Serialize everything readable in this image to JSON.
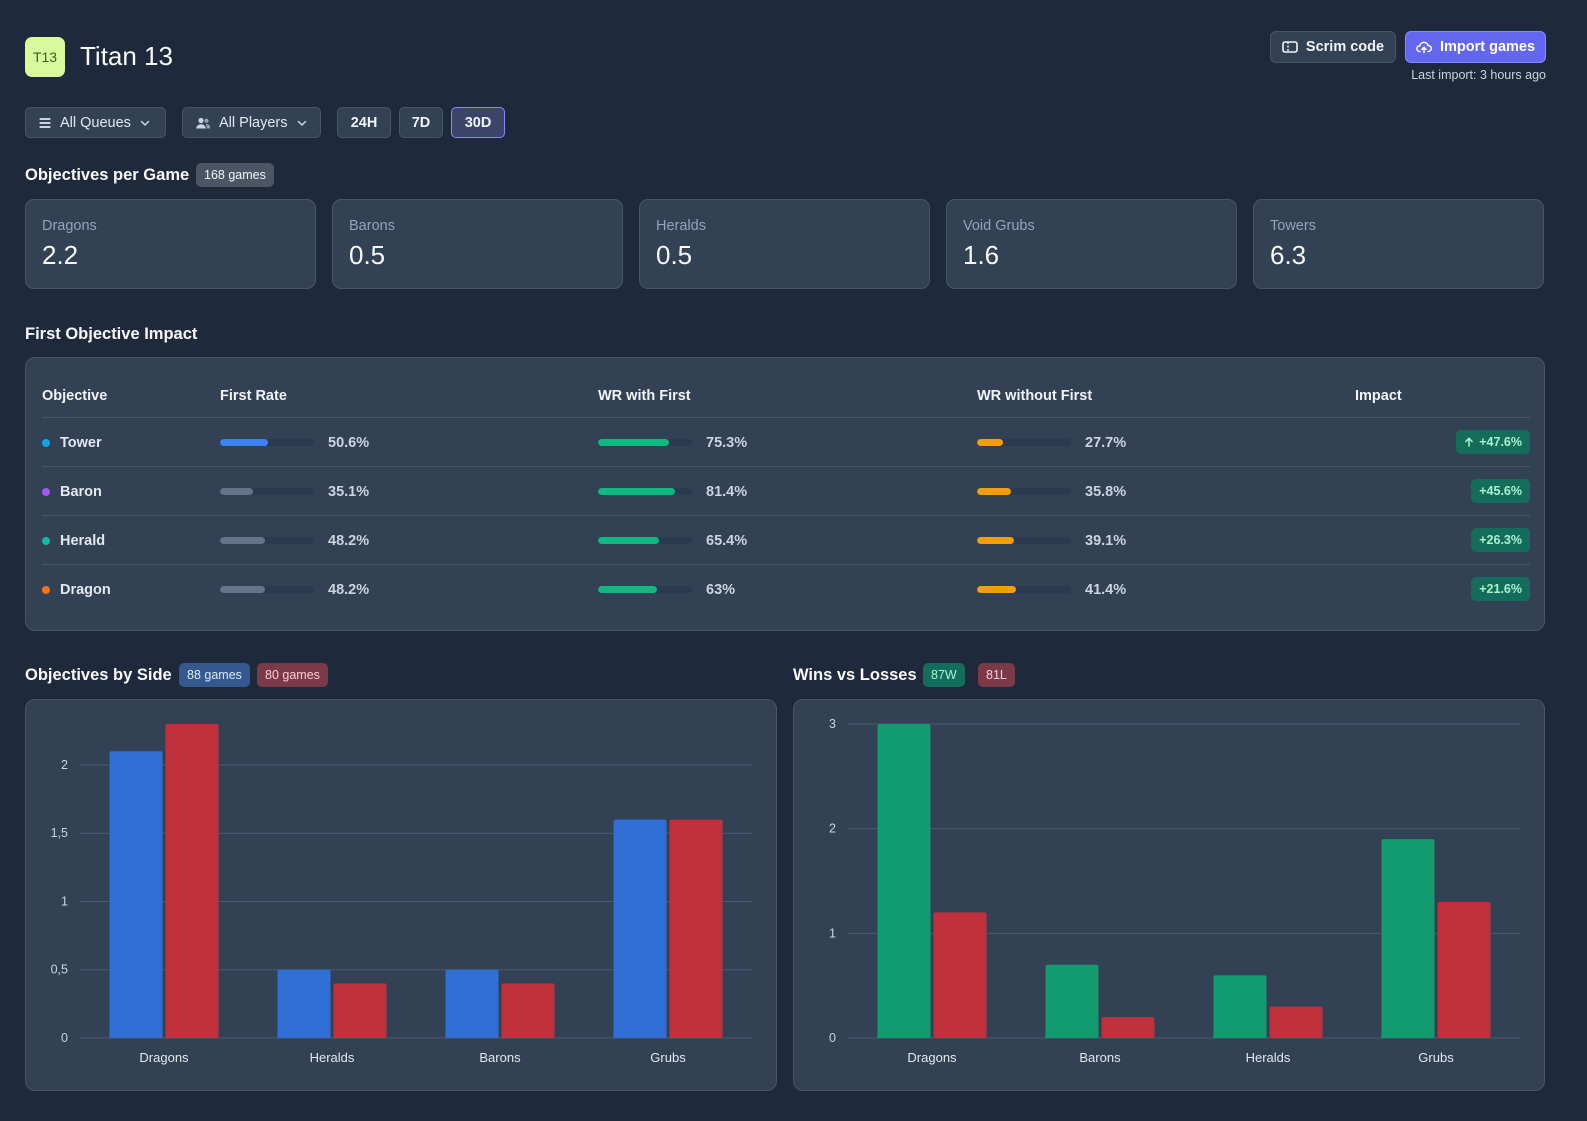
{
  "header": {
    "logo_text": "T13",
    "team_name": "Titan 13",
    "scrim_button": "Scrim code",
    "import_button": "Import games",
    "last_import": "Last import: 3 hours ago"
  },
  "filters": {
    "queues": "All Queues",
    "players": "All Players",
    "ranges": [
      "24H",
      "7D",
      "30D"
    ],
    "selected_range": "30D"
  },
  "objectives_per_game": {
    "title": "Objectives per Game",
    "games_badge": "168 games",
    "cards": [
      {
        "label": "Dragons",
        "value": "2.2"
      },
      {
        "label": "Barons",
        "value": "0.5"
      },
      {
        "label": "Heralds",
        "value": "0.5"
      },
      {
        "label": "Void Grubs",
        "value": "1.6"
      },
      {
        "label": "Towers",
        "value": "6.3"
      }
    ]
  },
  "first_objective_impact": {
    "title": "First Objective Impact",
    "columns": [
      "Objective",
      "First Rate",
      "WR with First",
      "WR without First",
      "Impact"
    ],
    "rows": [
      {
        "objective": "Tower",
        "dot_color": "#0ea5e9",
        "first_rate": "50.6%",
        "first_rate_value": 0.506,
        "first_rate_color": "#3b82f6",
        "wr_with": "75.3%",
        "wr_with_value": 0.753,
        "wr_without": "27.7%",
        "wr_without_value": 0.277,
        "impact": "+47.6%",
        "impact_arrow": true
      },
      {
        "objective": "Baron",
        "dot_color": "#a855f7",
        "first_rate": "35.1%",
        "first_rate_value": 0.351,
        "first_rate_color": "#64748b",
        "wr_with": "81.4%",
        "wr_with_value": 0.814,
        "wr_without": "35.8%",
        "wr_without_value": 0.358,
        "impact": "+45.6%",
        "impact_arrow": false
      },
      {
        "objective": "Herald",
        "dot_color": "#14b8a6",
        "first_rate": "48.2%",
        "first_rate_value": 0.482,
        "first_rate_color": "#64748b",
        "wr_with": "65.4%",
        "wr_with_value": 0.654,
        "wr_without": "39.1%",
        "wr_without_value": 0.391,
        "impact": "+26.3%",
        "impact_arrow": false
      },
      {
        "objective": "Dragon",
        "dot_color": "#f97316",
        "first_rate": "48.2%",
        "first_rate_value": 0.482,
        "first_rate_color": "#64748b",
        "wr_with": "63%",
        "wr_with_value": 0.63,
        "wr_without": "41.4%",
        "wr_without_value": 0.414,
        "impact": "+21.6%",
        "impact_arrow": false
      }
    ],
    "colors": {
      "wr_with": "#10b981",
      "wr_without": "#f59e0b"
    }
  },
  "objectives_by_side": {
    "title": "Objectives by Side",
    "blue_badge": "88 games",
    "red_badge": "80 games"
  },
  "wins_vs_losses": {
    "title": "Wins vs Losses",
    "wins_badge": "87W",
    "losses_badge": "81L"
  },
  "chart_data": [
    {
      "type": "bar",
      "categories": [
        "Dragons",
        "Heralds",
        "Barons",
        "Grubs"
      ],
      "series": [
        {
          "color": "#2f6fd6",
          "values": [
            2.1,
            0.5,
            0.5,
            1.6
          ]
        },
        {
          "color": "#c0313d",
          "values": [
            2.3,
            0.4,
            0.4,
            1.6
          ]
        }
      ],
      "yticks": [
        "0",
        "0,5",
        "1",
        "1,5",
        "2"
      ],
      "ytick_values": [
        0,
        0.5,
        1,
        1.5,
        2
      ],
      "ylim": [
        0,
        2.3
      ],
      "grid": true
    },
    {
      "type": "bar",
      "categories": [
        "Dragons",
        "Barons",
        "Heralds",
        "Grubs"
      ],
      "series": [
        {
          "color": "#129b6e",
          "values": [
            3.0,
            0.7,
            0.6,
            1.9
          ]
        },
        {
          "color": "#c0313d",
          "values": [
            1.2,
            0.2,
            0.3,
            1.3
          ]
        }
      ],
      "yticks": [
        "0",
        "1",
        "2",
        "3"
      ],
      "ytick_values": [
        0,
        1,
        2,
        3
      ],
      "ylim": [
        0,
        3
      ],
      "grid": true
    }
  ]
}
